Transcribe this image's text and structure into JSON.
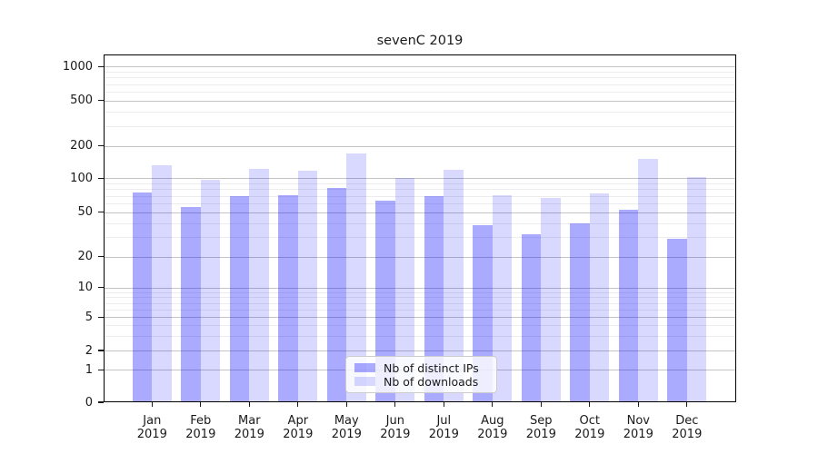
{
  "title": "sevenC 2019",
  "colors": {
    "distinct_ips_bar": "#ababff",
    "downloads_bar": "#d9d9ff",
    "grid_major": "#c4c4c4",
    "grid_minor": "#ececec",
    "axis": "#000000"
  },
  "legend": {
    "items": [
      {
        "label": "Nb of distinct IPs"
      },
      {
        "label": "Nb of downloads"
      }
    ]
  },
  "chart_data": {
    "type": "bar",
    "title": "sevenC 2019",
    "year": "2019",
    "months": [
      "Jan",
      "Feb",
      "Mar",
      "Apr",
      "May",
      "Jun",
      "Jul",
      "Aug",
      "Sep",
      "Oct",
      "Nov",
      "Dec"
    ],
    "categories": [
      "Jan 2019",
      "Feb 2019",
      "Mar 2019",
      "Apr 2019",
      "May 2019",
      "Jun 2019",
      "Jul 2019",
      "Aug 2019",
      "Sep 2019",
      "Oct 2019",
      "Nov 2019",
      "Dec 2019"
    ],
    "series": [
      {
        "name": "Nb of distinct IPs",
        "values": [
          75,
          56,
          70,
          71,
          82,
          63,
          70,
          38,
          32,
          40,
          53,
          29
        ]
      },
      {
        "name": "Nb of downloads",
        "values": [
          132,
          97,
          123,
          117,
          170,
          100,
          120,
          71,
          67,
          73,
          150,
          103
        ]
      }
    ],
    "yscale": "symlog",
    "yticks": [
      0,
      1,
      2,
      5,
      10,
      20,
      50,
      100,
      200,
      500,
      1000
    ],
    "ylim": [
      0,
      1200
    ],
    "grid": true,
    "legend_position": "lower-center",
    "xlabel": "",
    "ylabel": ""
  }
}
